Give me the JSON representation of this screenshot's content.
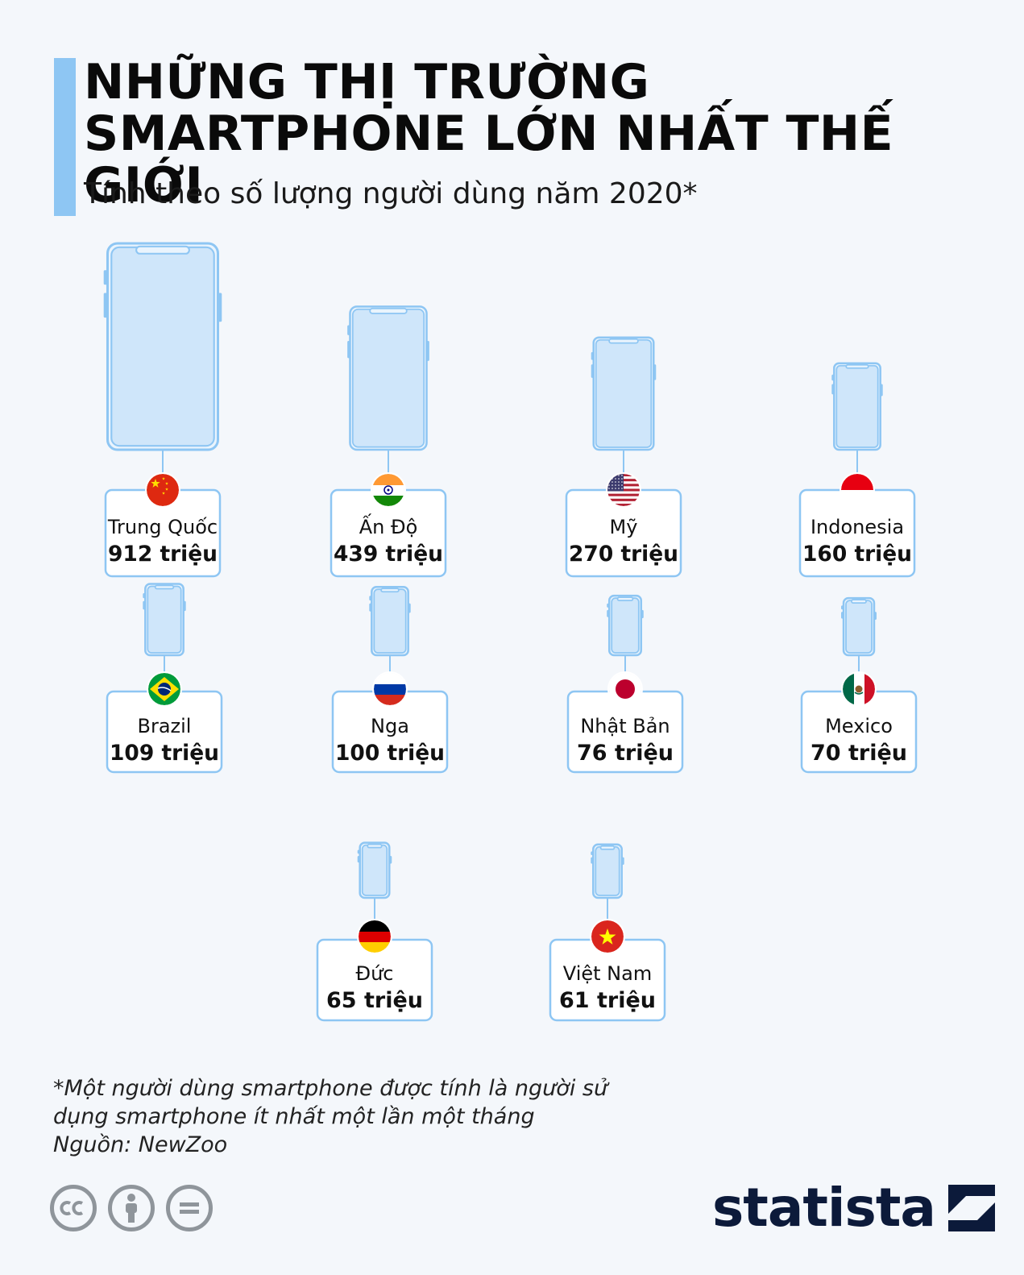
{
  "header": {
    "title_line1": "NHỮNG THỊ TRƯỜNG",
    "title_line2": "SMARTPHONE LỚN NHẤT THẾ GIỚI",
    "subtitle": "Tính theo số lượng người dùng năm 2020*"
  },
  "chart_data": {
    "type": "pictogram",
    "unit": "triệu",
    "categories": [
      "Trung Quốc",
      "Ấn Độ",
      "Mỹ",
      "Indonesia",
      "Brazil",
      "Nga",
      "Nhật Bản",
      "Mexico",
      "Đức",
      "Việt Nam"
    ],
    "values": [
      912,
      439,
      270,
      160,
      109,
      100,
      76,
      70,
      65,
      61
    ],
    "labels": [
      "912 triệu",
      "439 triệu",
      "270 triệu",
      "160 triệu",
      "109 triệu",
      "100 triệu",
      "76 triệu",
      "70 triệu",
      "65 triệu",
      "61 triệu"
    ],
    "flags": [
      "flag-china-icon",
      "flag-india-icon",
      "flag-usa-icon",
      "flag-indonesia-icon",
      "flag-brazil-icon",
      "flag-russia-icon",
      "flag-japan-icon",
      "flag-mexico-icon",
      "flag-germany-icon",
      "flag-vietnam-icon"
    ]
  },
  "colors": {
    "accent": "#8ec6f3",
    "phone_fill": "#cfe6fa",
    "phone_stroke": "#8ec6f3",
    "card_border": "#8ec6f3",
    "brand": "#0c1a3a"
  },
  "footer": {
    "note_line1": "*Một người dùng smartphone được tính là người sử",
    "note_line2": "dụng smartphone ít nhất một lần một tháng",
    "source": "Nguồn: NewZoo",
    "license_icons": [
      "cc-icon",
      "attribution-icon",
      "no-derivatives-icon"
    ],
    "brand": "statista"
  }
}
